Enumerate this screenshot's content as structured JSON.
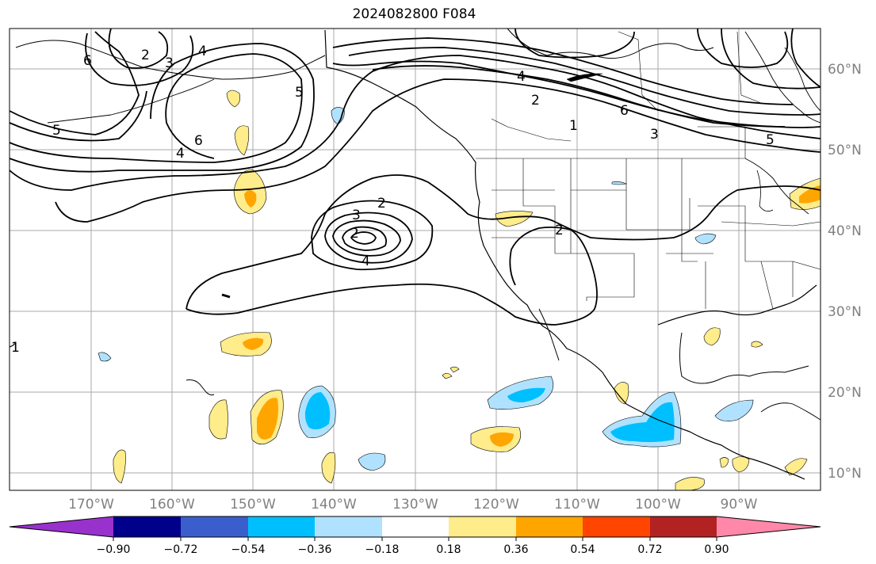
{
  "title": "2024082800 F084",
  "map": {
    "lat_labels": [
      "60°N",
      "50°N",
      "40°N",
      "30°N",
      "20°N",
      "10°N"
    ],
    "lon_labels": [
      "170°W",
      "160°W",
      "150°W",
      "140°W",
      "130°W",
      "120°W",
      "110°W",
      "100°W",
      "90°W"
    ],
    "contour_labels": [
      "6",
      "2",
      "3",
      "4",
      "5",
      "6",
      "4",
      "5",
      "2",
      "3",
      "2",
      "4",
      "4",
      "2",
      "1",
      "6",
      "3",
      "5",
      "2",
      "1"
    ]
  },
  "colorbar": {
    "tick_labels": [
      "−0.90",
      "−0.72",
      "−0.54",
      "−0.36",
      "−0.18",
      "0.18",
      "0.36",
      "0.54",
      "0.72",
      "0.90"
    ],
    "colors": [
      "#9932cc",
      "#00008b",
      "#3a5fcd",
      "#00bfff",
      "#b0e2ff",
      "#ffffff",
      "#ffec8b",
      "#ffa500",
      "#ff4500",
      "#b22222",
      "#ff88aa"
    ]
  }
}
